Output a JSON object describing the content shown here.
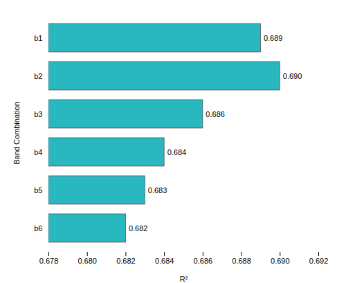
{
  "chart_data": {
    "type": "bar",
    "orientation": "horizontal",
    "categories": [
      "b1",
      "b2",
      "b3",
      "b4",
      "b5",
      "b6"
    ],
    "values": [
      0.689,
      0.69,
      0.686,
      0.684,
      0.683,
      0.682
    ],
    "value_labels": [
      "0.689",
      "0.690",
      "0.686",
      "0.684",
      "0.683",
      "0.682"
    ],
    "data_labels": true,
    "color": "#29B8C0",
    "xlabel": "R²",
    "ylabel": "Band Combination",
    "xlim": [
      0.678,
      0.692
    ],
    "xticks": [
      0.678,
      {
        "value": 0.68,
        "label": "0.680"
      },
      0.682,
      0.684,
      0.686,
      0.688,
      {
        "value": 0.69,
        "label": "0.690"
      },
      0.692
    ],
    "grid": false
  }
}
